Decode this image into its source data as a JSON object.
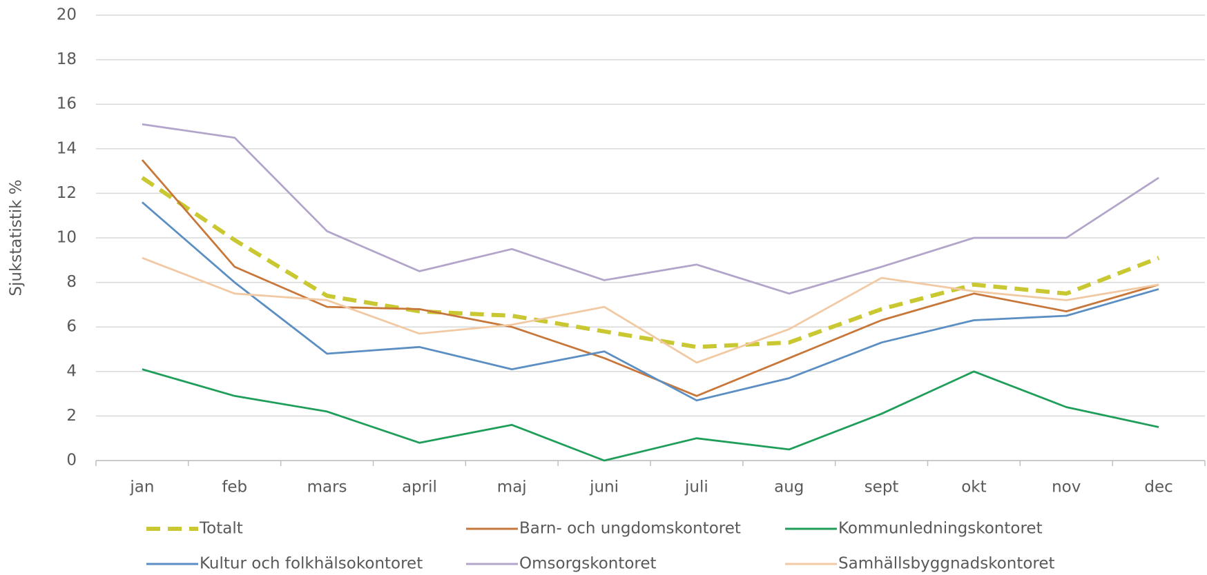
{
  "chart_data": {
    "type": "line",
    "ylabel": "Sjukstatistik %",
    "categories": [
      "jan",
      "feb",
      "mars",
      "april",
      "maj",
      "juni",
      "juli",
      "aug",
      "sept",
      "okt",
      "nov",
      "dec"
    ],
    "series": [
      {
        "name": "Totalt",
        "color": "#c9c832",
        "line_style": "dashed",
        "values": [
          12.7,
          9.9,
          7.4,
          6.7,
          6.5,
          5.8,
          5.1,
          5.3,
          6.8,
          7.9,
          7.5,
          9.1
        ]
      },
      {
        "name": "Barn- och ungdomskontoret",
        "color": "#c8773a",
        "values": [
          13.5,
          8.7,
          6.9,
          6.8,
          6.0,
          4.6,
          2.9,
          4.6,
          6.3,
          7.5,
          6.7,
          7.9
        ]
      },
      {
        "name": "Kommunledningskontoret",
        "color": "#1f9e5a",
        "values": [
          4.1,
          2.9,
          2.2,
          0.8,
          1.6,
          0.0,
          1.0,
          0.5,
          2.1,
          4.0,
          2.4,
          1.5
        ]
      },
      {
        "name": "Kultur och folkhälsokontoret",
        "color": "#5b8ec2",
        "values": [
          11.6,
          8.0,
          4.8,
          5.1,
          4.1,
          4.9,
          2.7,
          3.7,
          5.3,
          6.3,
          6.5,
          7.7
        ]
      },
      {
        "name": "Omsorgskontoret",
        "color": "#b3a5ca",
        "values": [
          15.1,
          14.5,
          10.3,
          8.5,
          9.5,
          8.1,
          8.8,
          7.5,
          8.7,
          10.0,
          10.0,
          12.7
        ]
      },
      {
        "name": "Samhällsbyggnadskontoret",
        "color": "#f1c9a2",
        "values": [
          9.1,
          7.5,
          7.2,
          5.7,
          6.1,
          6.9,
          4.4,
          5.9,
          8.2,
          7.6,
          7.2,
          7.9
        ]
      }
    ],
    "ylim": [
      0,
      20
    ],
    "yticks": [
      0,
      2,
      4,
      6,
      8,
      10,
      12,
      14,
      16,
      18,
      20
    ],
    "grid": true,
    "legend": "bottom"
  }
}
